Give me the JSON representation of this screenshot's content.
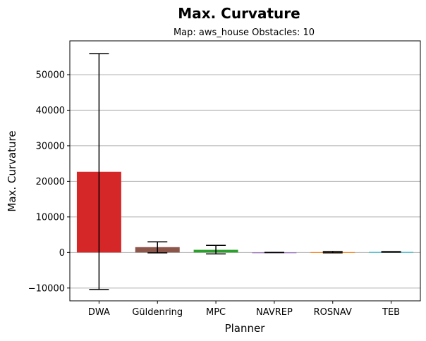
{
  "chart_data": {
    "type": "bar",
    "title": "Max. Curvature",
    "subtitle": "Map: aws_house Obstacles: 10",
    "xlabel": "Planner",
    "ylabel": "Max. Curvature",
    "categories": [
      "DWA",
      "Güldenring",
      "MPC",
      "NAVREP",
      "ROSNAV",
      "TEB"
    ],
    "values": [
      22700,
      1500,
      750,
      0,
      100,
      150
    ],
    "error_low": [
      -10400,
      -100,
      -400,
      -30,
      -100,
      100
    ],
    "error_high": [
      55900,
      3000,
      2000,
      30,
      300,
      250
    ],
    "colors": [
      "#d62728",
      "#8c564b",
      "#2ca02c",
      "#9467bd",
      "#ff7f0e",
      "#17becf"
    ],
    "yticks": [
      -10000,
      0,
      10000,
      20000,
      30000,
      40000,
      50000
    ],
    "ytick_labels": [
      "−10000",
      "0",
      "10000",
      "20000",
      "30000",
      "40000",
      "50000"
    ],
    "ylim": [
      -13600,
      59500
    ],
    "grid": "horizontal",
    "legend": "none"
  }
}
